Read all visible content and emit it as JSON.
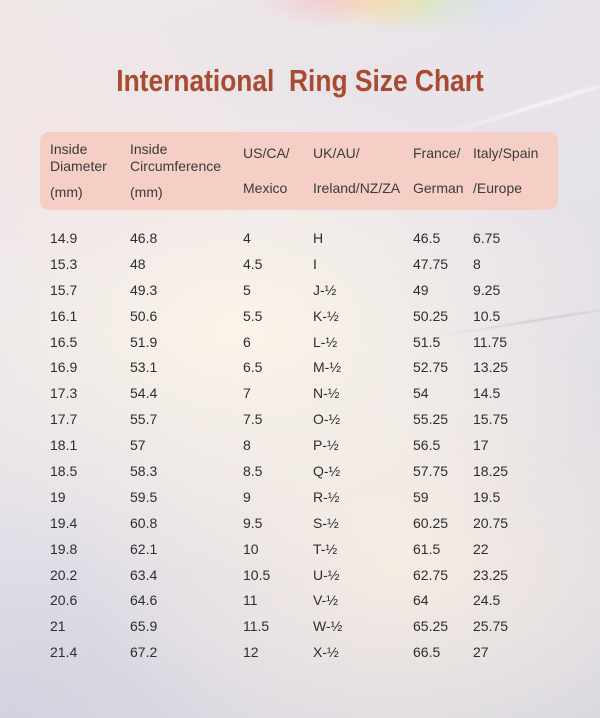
{
  "title": "International  Ring Size Chart",
  "colors": {
    "title_text": "#a84b31",
    "header_background": "#f5cec5",
    "header_text": "#3b3b3b",
    "body_text": "#2d2d2d"
  },
  "table": {
    "headers": [
      {
        "line1": "Inside Diameter",
        "line2": "(mm)"
      },
      {
        "line1": "Inside Circumference",
        "line2": "(mm)"
      },
      {
        "line1": "US/CA/",
        "line2": "Mexico"
      },
      {
        "line1": "UK/AU/",
        "line2": "Ireland/NZ/ZA"
      },
      {
        "line1": "France/",
        "line2": "German"
      },
      {
        "line1": "Italy/Spain",
        "line2": "/Europe"
      }
    ],
    "rows": [
      [
        "14.9",
        "46.8",
        "4",
        "H",
        "46.5",
        "6.75"
      ],
      [
        "15.3",
        "48",
        "4.5",
        "I",
        "47.75",
        "8"
      ],
      [
        "15.7",
        "49.3",
        "5",
        "J-½",
        "49",
        "9.25"
      ],
      [
        "16.1",
        "50.6",
        "5.5",
        "K-½",
        "50.25",
        "10.5"
      ],
      [
        "16.5",
        "51.9",
        "6",
        "L-½",
        "51.5",
        "11.75"
      ],
      [
        "16.9",
        "53.1",
        "6.5",
        "M-½",
        "52.75",
        "13.25"
      ],
      [
        "17.3",
        "54.4",
        "7",
        "N-½",
        "54",
        "14.5"
      ],
      [
        "17.7",
        "55.7",
        "7.5",
        "O-½",
        "55.25",
        "15.75"
      ],
      [
        "18.1",
        "57",
        "8",
        "P-½",
        "56.5",
        "17"
      ],
      [
        "18.5",
        "58.3",
        "8.5",
        "Q-½",
        "57.75",
        "18.25"
      ],
      [
        "19",
        "59.5",
        "9",
        "R-½",
        "59",
        "19.5"
      ],
      [
        "19.4",
        "60.8",
        "9.5",
        "S-½",
        "60.25",
        "20.75"
      ],
      [
        "19.8",
        "62.1",
        "10",
        "T-½",
        "61.5",
        "22"
      ],
      [
        "20.2",
        "63.4",
        "10.5",
        "U-½",
        "62.75",
        "23.25"
      ],
      [
        "20.6",
        "64.6",
        "11",
        "V-½",
        "64",
        "24.5"
      ],
      [
        "21",
        "65.9",
        "11.5",
        "W-½",
        "65.25",
        "25.75"
      ],
      [
        "21.4",
        "67.2",
        "12",
        "X-½",
        "66.5",
        "27"
      ]
    ]
  }
}
